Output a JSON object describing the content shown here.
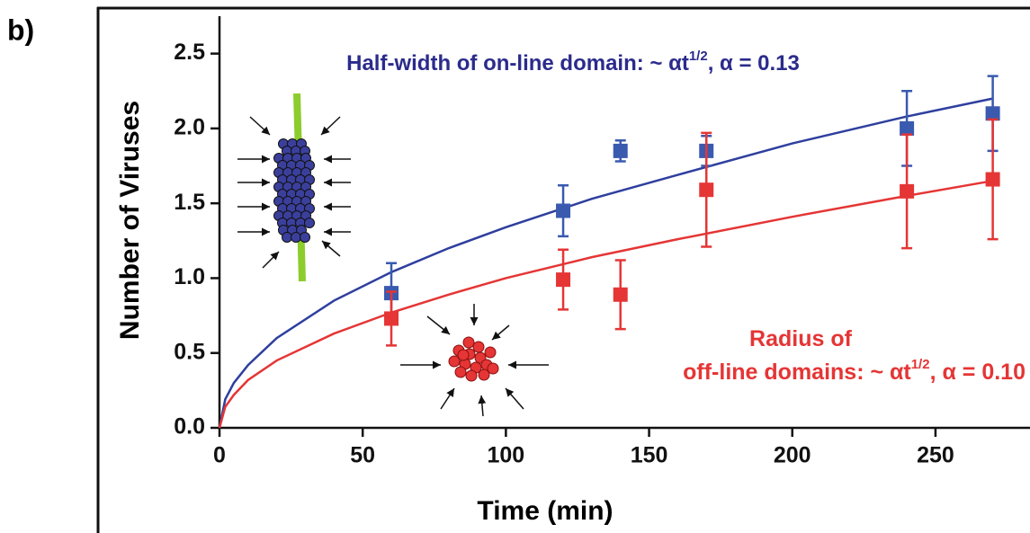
{
  "panel_label": "b)",
  "chart_data": {
    "type": "scatter",
    "x_label": "Time (min)",
    "y_label": "Number of Viruses",
    "xlim": [
      0,
      283
    ],
    "ylim": [
      0,
      2.75
    ],
    "xticks": [
      0,
      50,
      100,
      150,
      200,
      250
    ],
    "yticks": [
      {
        "value": 0,
        "label": "0.0"
      },
      0.5,
      {
        "value": 1,
        "label": "1.0"
      },
      1.5,
      {
        "value": 2,
        "label": "2.0"
      },
      2.5
    ],
    "series": [
      {
        "color": "#3a5ab0",
        "x": [
          60,
          120,
          140,
          170,
          240,
          270
        ],
        "values": [
          0.9,
          1.45,
          1.85,
          1.85,
          2.0,
          2.1
        ],
        "errors": [
          0.2,
          0.17,
          0.07,
          0.1,
          0.25,
          0.25
        ]
      },
      {
        "color": "#e53535",
        "x": [
          60,
          120,
          140,
          170,
          240,
          270
        ],
        "values": [
          0.73,
          0.99,
          0.89,
          1.59,
          1.58,
          1.66
        ],
        "errors": [
          0.18,
          0.2,
          0.23,
          0.38,
          0.38,
          0.4
        ]
      }
    ],
    "fits": [
      {
        "color": "#2e3f9e",
        "x": [
          0,
          2,
          5,
          10,
          20,
          40,
          60,
          80,
          100,
          130,
          160,
          200,
          240,
          270
        ],
        "values": [
          0,
          0.19,
          0.3,
          0.42,
          0.6,
          0.85,
          1.04,
          1.2,
          1.34,
          1.53,
          1.69,
          1.9,
          2.08,
          2.2
        ]
      },
      {
        "color": "#e53535",
        "x": [
          0,
          2,
          5,
          10,
          20,
          40,
          60,
          80,
          100,
          130,
          160,
          200,
          240,
          270
        ],
        "values": [
          0,
          0.14,
          0.22,
          0.32,
          0.45,
          0.63,
          0.77,
          0.89,
          1.0,
          1.14,
          1.26,
          1.41,
          1.55,
          1.65
        ]
      }
    ],
    "annotations": [
      {
        "color": "#2b2b8c",
        "parts": [
          "Half-width of on-line domain: ~ αt",
          "1/2",
          ", α = 0.13"
        ]
      },
      {
        "color": "#e53535",
        "parts": [
          "Radius of"
        ]
      },
      {
        "color": "#e53535",
        "parts": [
          "off-line domains: ~ αt",
          "1/2",
          ", α = 0.10"
        ]
      }
    ]
  }
}
